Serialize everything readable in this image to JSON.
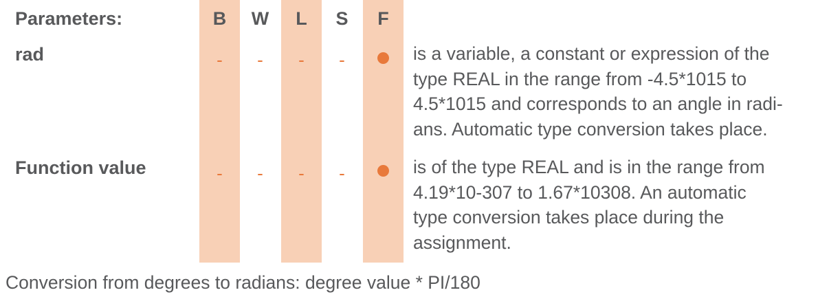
{
  "header": {
    "label": "Parameters:",
    "columns": [
      "B",
      "W",
      "L",
      "S",
      "F"
    ]
  },
  "rows": [
    {
      "name": "rad",
      "marks": [
        "-",
        "-",
        "-",
        "-",
        "●"
      ],
      "description_lines": [
        "is a variable, a constant or expression of the",
        "type REAL in the range from -4.5*1015 to",
        "4.5*1015 and corresponds to an angle in radi-",
        "ans. Automatic type conversion takes place."
      ]
    },
    {
      "name": "Function value",
      "marks": [
        "-",
        "-",
        "-",
        "-",
        "●"
      ],
      "description_lines": [
        "is of the type REAL and is in the range from",
        "4.19*10-307 to 1.67*10308. An automatic",
        "type conversion takes place during the",
        "assignment."
      ]
    }
  ],
  "footer": "Conversion from degrees to radians: degree value * PI/180",
  "colors": {
    "band": "#f8d0b6",
    "accent": "#e8793b",
    "text": "#58595b"
  }
}
